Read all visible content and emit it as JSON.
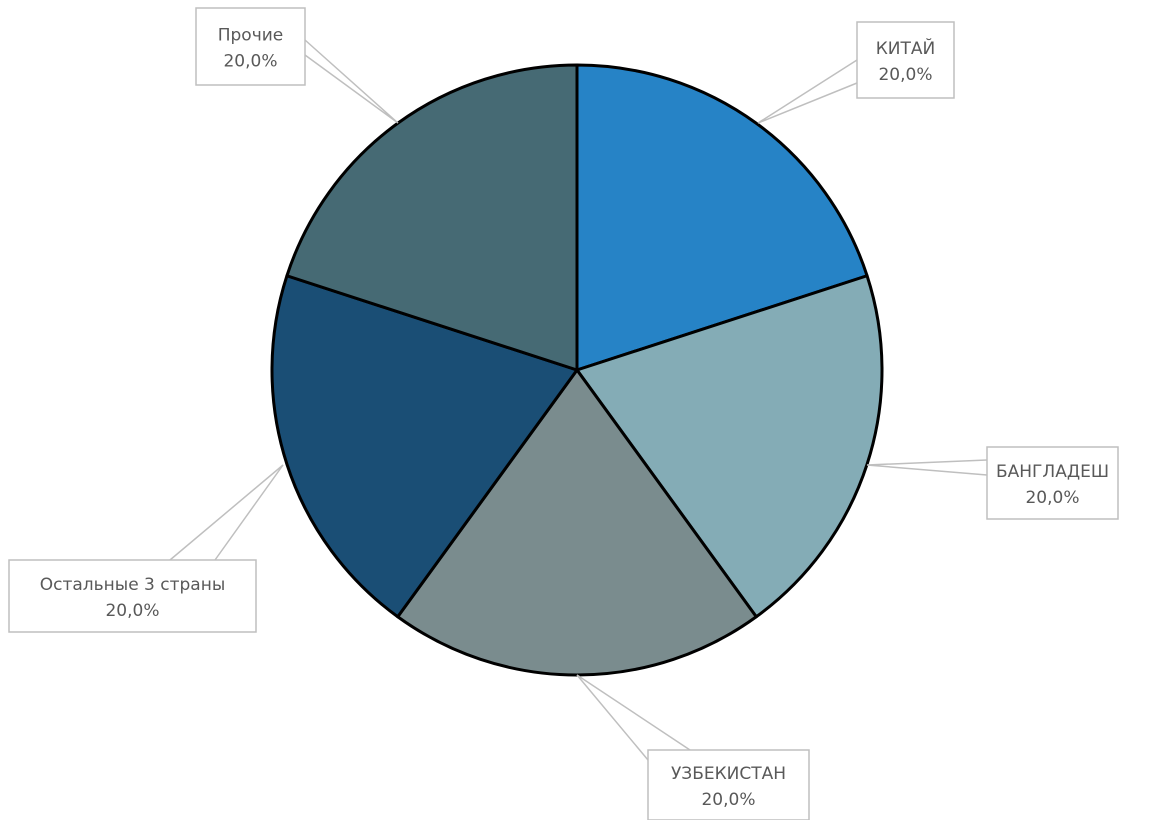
{
  "chart_data": {
    "type": "pie",
    "title": "",
    "slices": [
      {
        "label": "КИТАЙ",
        "value": 20.0,
        "percent_label": "20,0%",
        "color": "#2683C6"
      },
      {
        "label": "БАНГЛАДЕШ",
        "value": 20.0,
        "percent_label": "20,0%",
        "color": "#84ACB6"
      },
      {
        "label": "УЗБЕКИСТАН",
        "value": 20.0,
        "percent_label": "20,0%",
        "color": "#7A8C8E"
      },
      {
        "label": "Остальные 3 страны",
        "value": 20.0,
        "percent_label": "20,0%",
        "color": "#1A4E75"
      },
      {
        "label": "Прочие",
        "value": 20.0,
        "percent_label": "20,0%",
        "color": "#466A74"
      }
    ],
    "start_angle_deg": 0,
    "direction": "clockwise",
    "legend": "none",
    "data_labels": "callouts-outside"
  }
}
